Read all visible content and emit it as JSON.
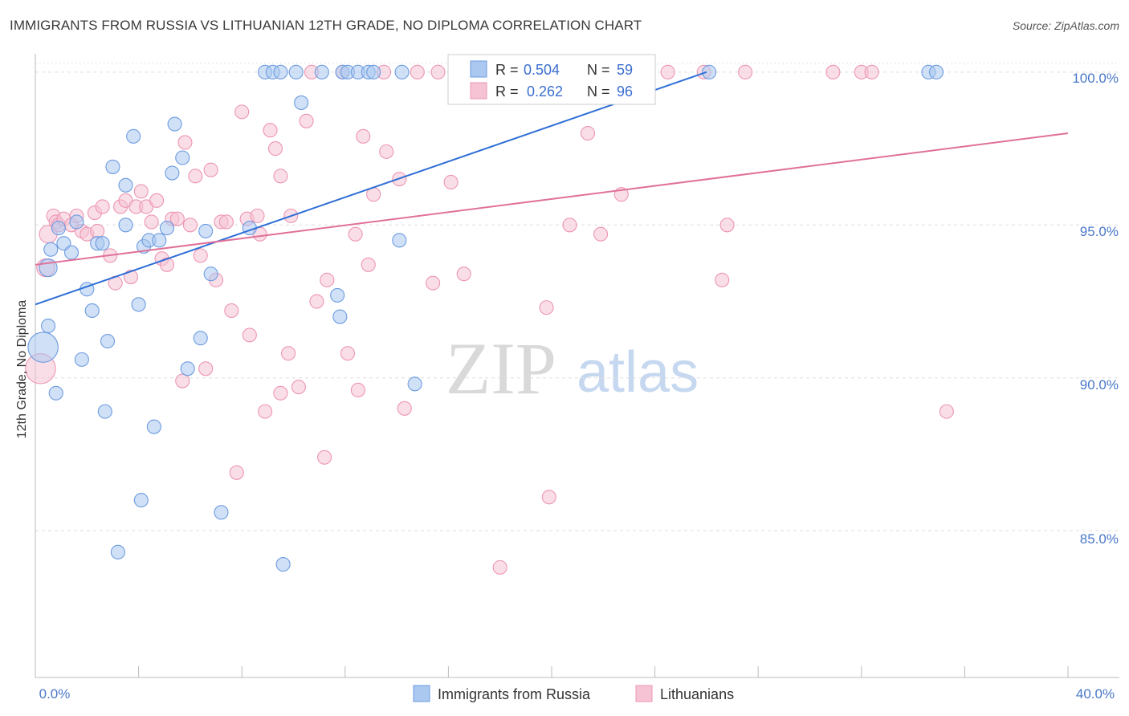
{
  "title": "IMMIGRANTS FROM RUSSIA VS LITHUANIAN 12TH GRADE, NO DIPLOMA CORRELATION CHART",
  "source": "Source: ZipAtlas.com",
  "watermark": {
    "zip": "ZIP",
    "atlas": "atlas"
  },
  "colors": {
    "blue_fill": "#aac8f0",
    "blue_stroke": "#6d9be0",
    "blue_line": "#2f6fd6",
    "pink_fill": "#f6c3d4",
    "pink_stroke": "#ec95b3",
    "pink_line": "#e0709a",
    "tick_text": "#4a78c8",
    "grid": "#dddddd"
  },
  "legend": {
    "rows": [
      {
        "r_label": "R =",
        "r_value": "0.504",
        "n_label": "N =",
        "n_value": "59"
      },
      {
        "r_label": "R =",
        "r_value": "0.262",
        "n_label": "N =",
        "n_value": "96"
      }
    ]
  },
  "chart_data": {
    "type": "scatter",
    "title": "IMMIGRANTS FROM RUSSIA VS LITHUANIAN 12TH GRADE, NO DIPLOMA CORRELATION CHART",
    "xlabel": "",
    "ylabel": "12th Grade, No Diploma",
    "xlim": [
      0,
      40
    ],
    "ylim": [
      80.2,
      100.6
    ],
    "x_tick_labels": [
      "0.0%",
      "40.0%"
    ],
    "y_ticks": [
      85,
      90,
      95,
      100
    ],
    "y_tick_labels": [
      "85.0%",
      "90.0%",
      "95.0%",
      "100.0%"
    ],
    "series": [
      {
        "name": "Immigrants from Russia",
        "color": "blue",
        "trend": {
          "x0": 0.0,
          "y0": 92.4,
          "x1": 26.0,
          "y1": 100.0
        },
        "points": [
          [
            0.3,
            91.0,
            2.2
          ],
          [
            0.5,
            93.6,
            1.3
          ],
          [
            0.5,
            91.7,
            1
          ],
          [
            0.6,
            94.2,
            1
          ],
          [
            0.8,
            89.5,
            1
          ],
          [
            0.9,
            94.9,
            1
          ],
          [
            1.1,
            94.4,
            1
          ],
          [
            1.4,
            94.1,
            1
          ],
          [
            1.6,
            95.1,
            1
          ],
          [
            1.8,
            90.6,
            1
          ],
          [
            2.0,
            92.9,
            1
          ],
          [
            2.2,
            92.2,
            1
          ],
          [
            2.4,
            94.4,
            1
          ],
          [
            2.6,
            94.4,
            1
          ],
          [
            2.7,
            88.9,
            1
          ],
          [
            2.8,
            91.2,
            1
          ],
          [
            3.0,
            96.9,
            1
          ],
          [
            3.2,
            84.3,
            1
          ],
          [
            3.5,
            96.3,
            1
          ],
          [
            3.5,
            95.0,
            1
          ],
          [
            3.8,
            97.9,
            1
          ],
          [
            4.0,
            92.4,
            1
          ],
          [
            4.1,
            86.0,
            1
          ],
          [
            4.2,
            94.3,
            1
          ],
          [
            4.4,
            94.5,
            1
          ],
          [
            4.6,
            88.4,
            1
          ],
          [
            4.8,
            94.5,
            1
          ],
          [
            5.1,
            94.9,
            1
          ],
          [
            5.3,
            96.7,
            1
          ],
          [
            5.4,
            98.3,
            1
          ],
          [
            5.7,
            97.2,
            1
          ],
          [
            5.9,
            90.3,
            1
          ],
          [
            6.4,
            91.3,
            1
          ],
          [
            6.6,
            94.8,
            1
          ],
          [
            6.8,
            93.4,
            1
          ],
          [
            7.2,
            85.6,
            1
          ],
          [
            8.3,
            94.9,
            1
          ],
          [
            8.9,
            100.0,
            1
          ],
          [
            9.2,
            100.0,
            1
          ],
          [
            9.5,
            100.0,
            1
          ],
          [
            9.6,
            83.9,
            1
          ],
          [
            10.1,
            100.0,
            1
          ],
          [
            10.3,
            99.0,
            1
          ],
          [
            11.1,
            100.0,
            1
          ],
          [
            11.7,
            92.7,
            1
          ],
          [
            11.8,
            92.0,
            1
          ],
          [
            11.9,
            100.0,
            1
          ],
          [
            12.1,
            100.0,
            1
          ],
          [
            12.5,
            100.0,
            1
          ],
          [
            12.9,
            100.0,
            1
          ],
          [
            13.1,
            100.0,
            1
          ],
          [
            14.1,
            94.5,
            1
          ],
          [
            14.2,
            100.0,
            1
          ],
          [
            14.7,
            89.8,
            1
          ],
          [
            19.6,
            100.0,
            1
          ],
          [
            20.0,
            100.0,
            1
          ],
          [
            26.1,
            100.0,
            1
          ],
          [
            34.6,
            100.0,
            1
          ],
          [
            34.9,
            100.0,
            1
          ]
        ]
      },
      {
        "name": "Lithuanians",
        "color": "pink",
        "trend": {
          "x0": 0.0,
          "y0": 93.7,
          "x1": 40.0,
          "y1": 98.0
        },
        "points": [
          [
            0.2,
            90.3,
            2.2
          ],
          [
            0.4,
            93.6,
            1.3
          ],
          [
            0.5,
            94.7,
            1.3
          ],
          [
            0.7,
            95.3,
            1
          ],
          [
            0.8,
            95.1,
            1
          ],
          [
            0.9,
            95.0,
            1
          ],
          [
            1.1,
            95.2,
            1
          ],
          [
            1.4,
            95.0,
            1
          ],
          [
            1.6,
            95.3,
            1
          ],
          [
            1.8,
            94.8,
            1
          ],
          [
            2.0,
            94.7,
            1
          ],
          [
            2.3,
            95.4,
            1
          ],
          [
            2.4,
            94.8,
            1
          ],
          [
            2.6,
            95.6,
            1
          ],
          [
            2.9,
            94.0,
            1
          ],
          [
            3.1,
            93.1,
            1
          ],
          [
            3.3,
            95.6,
            1
          ],
          [
            3.5,
            95.8,
            1
          ],
          [
            3.7,
            93.3,
            1
          ],
          [
            3.9,
            95.6,
            1
          ],
          [
            4.1,
            96.1,
            1
          ],
          [
            4.3,
            95.6,
            1
          ],
          [
            4.5,
            95.1,
            1
          ],
          [
            4.7,
            95.8,
            1
          ],
          [
            4.9,
            93.9,
            1
          ],
          [
            5.1,
            93.7,
            1
          ],
          [
            5.3,
            95.2,
            1
          ],
          [
            5.5,
            95.2,
            1
          ],
          [
            5.7,
            89.9,
            1
          ],
          [
            5.8,
            97.7,
            1
          ],
          [
            6.0,
            95.0,
            1
          ],
          [
            6.2,
            96.6,
            1
          ],
          [
            6.4,
            94.0,
            1
          ],
          [
            6.6,
            90.3,
            1
          ],
          [
            6.8,
            96.8,
            1
          ],
          [
            7.0,
            93.2,
            1
          ],
          [
            7.2,
            95.1,
            1
          ],
          [
            7.4,
            95.1,
            1
          ],
          [
            7.6,
            92.2,
            1
          ],
          [
            7.8,
            86.9,
            1
          ],
          [
            8.0,
            98.7,
            1
          ],
          [
            8.2,
            95.2,
            1
          ],
          [
            8.3,
            91.4,
            1
          ],
          [
            8.6,
            95.3,
            1
          ],
          [
            8.7,
            94.7,
            1
          ],
          [
            8.9,
            88.9,
            1
          ],
          [
            9.1,
            98.1,
            1
          ],
          [
            9.3,
            97.5,
            1
          ],
          [
            9.5,
            96.6,
            1
          ],
          [
            9.5,
            89.5,
            1
          ],
          [
            9.8,
            90.8,
            1
          ],
          [
            9.9,
            95.3,
            1
          ],
          [
            10.2,
            89.7,
            1
          ],
          [
            10.5,
            98.4,
            1
          ],
          [
            10.7,
            100.0,
            1
          ],
          [
            10.9,
            92.5,
            1
          ],
          [
            11.2,
            87.4,
            1
          ],
          [
            11.3,
            93.2,
            1
          ],
          [
            11.9,
            100.0,
            1
          ],
          [
            12.1,
            90.8,
            1
          ],
          [
            12.4,
            94.7,
            1
          ],
          [
            12.5,
            89.6,
            1
          ],
          [
            12.7,
            97.9,
            1
          ],
          [
            12.9,
            93.7,
            1
          ],
          [
            13.1,
            96.0,
            1
          ],
          [
            13.5,
            100.0,
            1
          ],
          [
            13.6,
            97.4,
            1
          ],
          [
            14.1,
            96.5,
            1
          ],
          [
            14.3,
            89.0,
            1
          ],
          [
            14.8,
            100.0,
            1
          ],
          [
            15.4,
            93.1,
            1
          ],
          [
            15.6,
            100.0,
            1
          ],
          [
            16.1,
            96.4,
            1
          ],
          [
            16.5,
            100.0,
            1
          ],
          [
            16.6,
            93.4,
            1
          ],
          [
            17.2,
            100.0,
            1
          ],
          [
            18.0,
            83.8,
            1
          ],
          [
            18.9,
            100.0,
            1
          ],
          [
            19.8,
            92.3,
            1
          ],
          [
            19.9,
            86.1,
            1
          ],
          [
            20.7,
            95.0,
            1
          ],
          [
            21.1,
            100.0,
            1
          ],
          [
            21.4,
            98.0,
            1
          ],
          [
            21.9,
            94.7,
            1
          ],
          [
            22.3,
            100.0,
            1
          ],
          [
            22.7,
            96.0,
            1
          ],
          [
            23.4,
            100.0,
            1
          ],
          [
            24.5,
            100.0,
            1
          ],
          [
            25.9,
            100.0,
            1
          ],
          [
            26.6,
            93.2,
            1
          ],
          [
            26.8,
            95.0,
            1
          ],
          [
            27.5,
            100.0,
            1
          ],
          [
            30.9,
            100.0,
            1
          ],
          [
            32.0,
            100.0,
            1
          ],
          [
            32.4,
            100.0,
            1
          ],
          [
            35.3,
            88.9,
            1
          ]
        ]
      }
    ]
  }
}
